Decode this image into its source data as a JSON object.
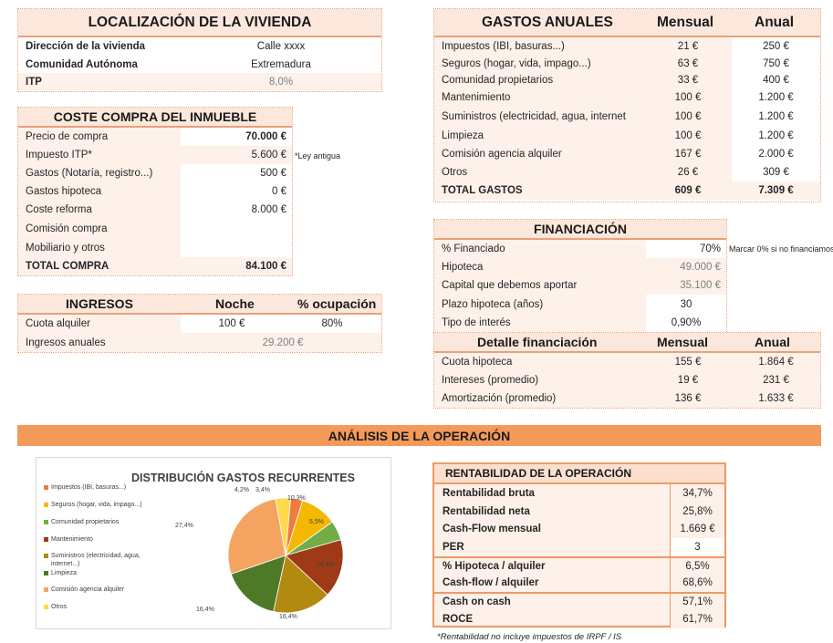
{
  "location": {
    "title": "LOCALIZACIÓN DE LA VIVIENDA",
    "rows": [
      {
        "label": "Dirección de la vivienda",
        "value": "Calle xxxx"
      },
      {
        "label": "Comunidad Autónoma",
        "value": "Extremadura"
      },
      {
        "label": "ITP",
        "value": "8,0%"
      }
    ]
  },
  "purchase": {
    "title": "COSTE COMPRA DEL INMUEBLE",
    "rows": [
      {
        "label": "Precio de compra",
        "value": "70.000 €"
      },
      {
        "label": "Impuesto ITP*",
        "value": "5.600 €",
        "note": "*Ley antigua"
      },
      {
        "label": "Gastos (Notaría, registro...)",
        "value": "500 €"
      },
      {
        "label": "Gastos hipoteca",
        "value": "0 €"
      },
      {
        "label": "Coste reforma",
        "value": "8.000 €"
      },
      {
        "label": "Comisión compra",
        "value": ""
      },
      {
        "label": "Mobiliario y otros",
        "value": ""
      },
      {
        "label": "TOTAL COMPRA",
        "value": "84.100 €"
      }
    ]
  },
  "income": {
    "title": "INGRESOS",
    "col1": "Noche",
    "col2": "% ocupación",
    "rows": [
      {
        "label": "Cuota alquiler",
        "v1": "100 €",
        "v2": "80%"
      },
      {
        "label": "Ingresos anuales",
        "v1": "29.200 €"
      }
    ]
  },
  "expenses": {
    "title": "GASTOS ANUALES",
    "col1": "Mensual",
    "col2": "Anual",
    "rows": [
      {
        "label": "Impuestos (IBI, basuras...)",
        "m": "21 €",
        "a": "250 €"
      },
      {
        "label": "Seguros (hogar, vida, impago...)",
        "m": "63 €",
        "a": "750 €"
      },
      {
        "label": "Comunidad propietarios",
        "m": "33 €",
        "a": "400 €"
      },
      {
        "label": "Mantenimiento",
        "m": "100 €",
        "a": "1.200 €"
      },
      {
        "label": "Suministros (electricidad, agua, internet",
        "m": "100 €",
        "a": "1.200 €"
      },
      {
        "label": "Limpieza",
        "m": "100 €",
        "a": "1.200 €"
      },
      {
        "label": "Comisión agencia alquiler",
        "m": "167 €",
        "a": "2.000 €"
      },
      {
        "label": "Otros",
        "m": "26 €",
        "a": "309 €"
      },
      {
        "label": "TOTAL GASTOS",
        "m": "609 €",
        "a": "7.309 €"
      }
    ]
  },
  "financing": {
    "title": "FINANCIACIÓN",
    "note": "Marcar 0% si no financiamos",
    "rows": [
      {
        "label": "% Financiado",
        "value": "70%"
      },
      {
        "label": "Hipoteca",
        "value": "49.000 €"
      },
      {
        "label": "Capital que debemos aportar",
        "value": "35.100 €"
      },
      {
        "label": "Plazo hipoteca (años)",
        "value": "30"
      },
      {
        "label": "Tipo de interés",
        "value": "0,90%"
      }
    ],
    "detail": {
      "title": "Detalle financiación",
      "col1": "Mensual",
      "col2": "Anual",
      "rows": [
        {
          "label": "Cuota hipoteca",
          "m": "155 €",
          "a": "1.864 €"
        },
        {
          "label": "Intereses (promedio)",
          "m": "19 €",
          "a": "231 €"
        },
        {
          "label": "Amortización (promedio)",
          "m": "136 €",
          "a": "1.633 €"
        }
      ]
    }
  },
  "analysis": {
    "title": "ANÁLISIS DE LA OPERACIÓN"
  },
  "chart_data": {
    "type": "pie",
    "title": "DISTRIBUCIÓN GASTOS RECURRENTES",
    "categories": [
      "Impuestos (IBI, basuras...)",
      "Seguros (hogar, vida, impago...)",
      "Comunidad propietarios",
      "Mantenimiento",
      "Suministros (electricidad, agua, internet...)",
      "Limpieza",
      "Comisión agencia alquiler",
      "Otros"
    ],
    "values": [
      3.4,
      10.3,
      5.5,
      16.4,
      16.4,
      16.4,
      27.4,
      4.2
    ],
    "labels": [
      "3,4%",
      "10,3%",
      "5,5%",
      "16,4%",
      "16,4%",
      "16,4%",
      "27,4%",
      "4,2%"
    ],
    "colors": [
      "#f07b3f",
      "#f5b800",
      "#70ad47",
      "#9e3a16",
      "#b38a10",
      "#4e7a27",
      "#f4a460",
      "#ffd94d"
    ],
    "legend_position": "left"
  },
  "profitability": {
    "title": "RENTABILIDAD DE LA OPERACIÓN",
    "rows": [
      {
        "label": "Rentabilidad bruta",
        "value": "34,7%"
      },
      {
        "label": "Rentabilidad neta",
        "value": "25,8%"
      },
      {
        "label": "Cash-Flow mensual",
        "value": "1.669 €"
      },
      {
        "label": "PER",
        "value": "3"
      },
      {
        "label": "% Hipoteca / alquiler",
        "value": "6,5%"
      },
      {
        "label": "Cash-flow / alquiler",
        "value": "68,6%"
      },
      {
        "label": "Cash on cash",
        "value": "57,1%"
      },
      {
        "label": "ROCE",
        "value": "61,7%"
      }
    ],
    "footnote": "*Rentabilidad no incluye impuestos de IRPF / IS"
  }
}
